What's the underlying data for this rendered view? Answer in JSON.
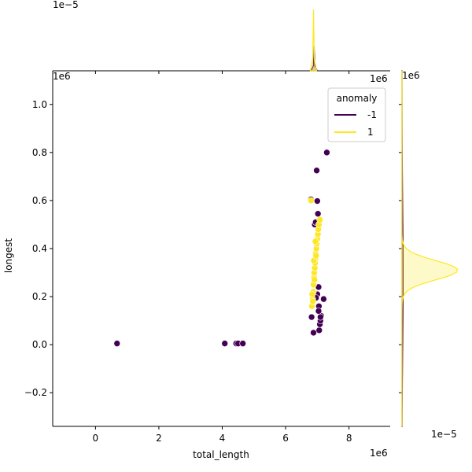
{
  "chart_data": {
    "type": "scatter",
    "xlabel": "total_length",
    "ylabel": "longest",
    "x_offset_label": "1e6",
    "y_offset_label": "1e6",
    "xlim": [
      -1.35,
      9.3
    ],
    "ylim": [
      -0.34,
      1.14
    ],
    "xticks": [
      0,
      2,
      4,
      6,
      8
    ],
    "yticks": [
      -0.2,
      0.0,
      0.2,
      0.4,
      0.6,
      0.8,
      1.0
    ],
    "xtick_labels": [
      "0",
      "2",
      "4",
      "6",
      "8"
    ],
    "ytick_labels": [
      "−0.2",
      "0.0",
      "0.2",
      "0.4",
      "0.6",
      "0.8",
      "1.0"
    ],
    "legend": {
      "title": "anomaly",
      "placement": "top-right",
      "entries": [
        {
          "label": "-1",
          "color": "#440154"
        },
        {
          "label": "1",
          "color": "#fde725"
        }
      ]
    },
    "series": [
      {
        "name": "-1",
        "color": "#440154",
        "x": [
          0.68,
          4.08,
          4.44,
          4.5,
          4.65,
          6.8,
          6.88,
          6.98,
          7.0,
          7.02,
          7.04,
          7.06,
          7.08,
          7.1,
          7.12,
          7.2,
          7.3,
          6.82,
          6.92,
          6.95,
          7.05,
          7.0,
          6.96,
          7.1,
          7.04
        ],
        "y": [
          0.005,
          0.005,
          0.005,
          0.005,
          0.005,
          0.605,
          0.05,
          0.725,
          0.598,
          0.545,
          0.24,
          0.06,
          0.085,
          0.1,
          0.12,
          0.19,
          0.8,
          0.115,
          0.5,
          0.51,
          0.16,
          0.21,
          0.195,
          0.115,
          0.14
        ]
      },
      {
        "name": "1",
        "color": "#fde725",
        "x": [
          6.8,
          6.83,
          6.85,
          6.87,
          6.88,
          6.9,
          6.9,
          6.92,
          6.93,
          6.95,
          6.95,
          6.97,
          6.98,
          7.0,
          7.02,
          7.03,
          7.05,
          7.08,
          6.86,
          6.91,
          6.89,
          6.94,
          6.84,
          6.96
        ],
        "y": [
          0.6,
          0.16,
          0.19,
          0.22,
          0.25,
          0.28,
          0.3,
          0.32,
          0.34,
          0.36,
          0.38,
          0.4,
          0.42,
          0.44,
          0.46,
          0.48,
          0.5,
          0.52,
          0.18,
          0.27,
          0.35,
          0.43,
          0.21,
          0.37
        ]
      }
    ],
    "marginal_top": {
      "offset_label": "1e−5",
      "series": [
        {
          "name": "-1",
          "color": "#440154",
          "peak_x": 6.9,
          "width": 0.01,
          "height_frac": 0.4
        },
        {
          "name": "1",
          "color": "#fde725",
          "peak_x": 6.88,
          "width": 0.01,
          "height_frac": 1.0
        }
      ]
    },
    "marginal_right": {
      "offset_label": "1e−5",
      "series": [
        {
          "name": "-1",
          "color": "#440154",
          "center_y": 0.28,
          "sigma": 0.3,
          "height_frac": 0.02
        },
        {
          "name": "1",
          "color": "#fde725",
          "center_y": 0.31,
          "sigma": 0.04,
          "height_frac": 1.0
        }
      ]
    }
  }
}
